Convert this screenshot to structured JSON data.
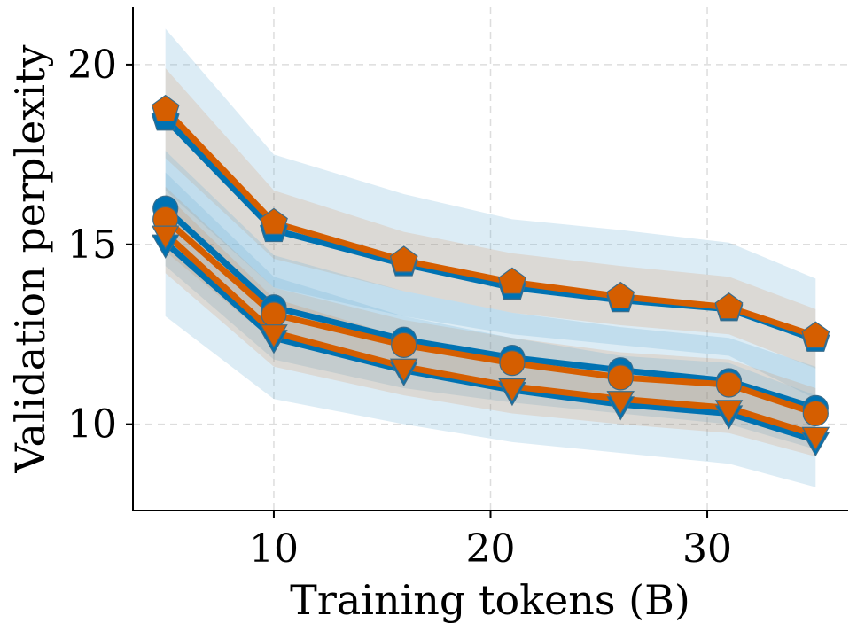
{
  "chart_data": {
    "type": "line",
    "title": "",
    "xlabel": "Training tokens (B)",
    "ylabel": "Validation perplexity",
    "xlim": [
      3.5,
      36.5
    ],
    "ylim": [
      7.6,
      21.6
    ],
    "xticks": [
      10,
      20,
      30
    ],
    "yticks": [
      10,
      15,
      20
    ],
    "grid": true,
    "legend": "none",
    "colors": {
      "blue": "#0072b2",
      "orange": "#d55e00",
      "band": "#6baed6"
    },
    "series": [
      {
        "color": "#0072b2",
        "marker": "pentagon",
        "x": [
          5,
          10,
          16,
          21,
          26,
          31,
          35
        ],
        "y": [
          18.5,
          15.4,
          14.45,
          13.8,
          13.45,
          13.2,
          12.35
        ],
        "lower": [
          16.5,
          13.8,
          13.0,
          12.5,
          12.2,
          11.9,
          10.7
        ],
        "upper": [
          21.0,
          17.5,
          16.4,
          15.7,
          15.4,
          15.05,
          14.05
        ]
      },
      {
        "color": "#d55e00",
        "marker": "pentagon",
        "x": [
          5,
          10,
          16,
          21,
          26,
          31,
          35
        ],
        "y": [
          18.75,
          15.6,
          14.55,
          13.95,
          13.55,
          13.25,
          12.45
        ],
        "lower": [
          17.4,
          14.6,
          13.7,
          13.1,
          12.75,
          12.5,
          11.55
        ],
        "upper": [
          19.9,
          16.5,
          15.35,
          14.75,
          14.4,
          14.1,
          13.2
        ]
      },
      {
        "color": "#0072b2",
        "marker": "circle",
        "x": [
          5,
          10,
          16,
          21,
          26,
          31,
          35
        ],
        "y": [
          16.0,
          13.25,
          12.35,
          11.85,
          11.5,
          11.2,
          10.45
        ],
        "lower": [
          14.4,
          11.8,
          11.0,
          10.6,
          10.3,
          10.0,
          9.3
        ],
        "upper": [
          17.6,
          14.7,
          13.7,
          13.1,
          12.7,
          12.4,
          11.6
        ]
      },
      {
        "color": "#d55e00",
        "marker": "circle",
        "x": [
          5,
          10,
          16,
          21,
          26,
          31,
          35
        ],
        "y": [
          15.7,
          13.05,
          12.2,
          11.7,
          11.3,
          11.1,
          10.3
        ],
        "lower": [
          14.8,
          12.3,
          11.5,
          11.0,
          10.7,
          10.5,
          9.6
        ],
        "upper": [
          16.6,
          13.8,
          12.9,
          12.4,
          12.0,
          11.8,
          11.0
        ]
      },
      {
        "color": "#0072b2",
        "marker": "triangle-down",
        "x": [
          5,
          10,
          16,
          21,
          26,
          31,
          35
        ],
        "y": [
          15.05,
          12.4,
          11.5,
          10.95,
          10.55,
          10.3,
          9.55
        ],
        "lower": [
          13.0,
          10.7,
          10.0,
          9.5,
          9.2,
          8.9,
          8.25
        ],
        "upper": [
          17.0,
          14.1,
          13.0,
          12.4,
          11.9,
          11.7,
          10.8
        ]
      },
      {
        "color": "#d55e00",
        "marker": "triangle-down",
        "x": [
          5,
          10,
          16,
          21,
          26,
          31,
          35
        ],
        "y": [
          15.3,
          12.55,
          11.6,
          11.05,
          10.7,
          10.45,
          9.7
        ],
        "lower": [
          14.2,
          11.6,
          10.8,
          10.3,
          10.0,
          9.75,
          9.1
        ],
        "upper": [
          16.4,
          13.5,
          12.4,
          11.8,
          11.4,
          11.15,
          10.3
        ]
      }
    ]
  }
}
